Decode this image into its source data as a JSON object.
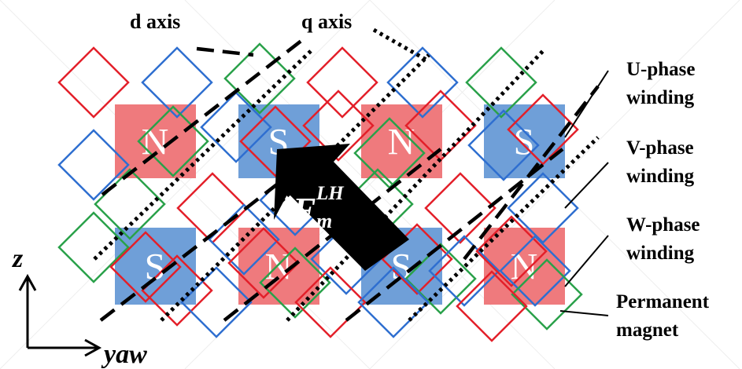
{
  "labels": {
    "d_axis": "d axis",
    "q_axis": "q axis",
    "z_axis": "z",
    "yaw_axis": "yaw",
    "force_base": "F",
    "force_sup": "LH",
    "force_sub": "m"
  },
  "legend": {
    "u_line1": "U-phase",
    "u_line2": "winding",
    "v_line1": "V-phase",
    "v_line2": "winding",
    "w_line1": "W-phase",
    "w_line2": "winding",
    "pm_line1": "Permanent",
    "pm_line2": "magnet"
  },
  "colors": {
    "u_phase": "#e3202a",
    "v_phase": "#2f6fd0",
    "w_phase": "#2aa14a",
    "magnet_N": "#ef7a7d",
    "magnet_S": "#6f9fd8",
    "arrow": "#000000"
  },
  "magnets": {
    "top_row": [
      "N",
      "S",
      "N",
      "S"
    ],
    "bottom_row": [
      "S",
      "N",
      "S",
      "N"
    ]
  }
}
